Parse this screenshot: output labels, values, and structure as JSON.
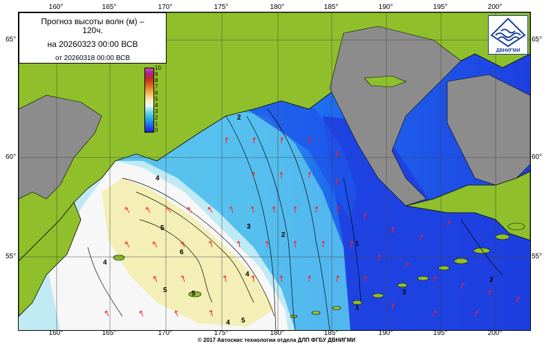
{
  "title": {
    "line1": "Прогноз высоты волн (м) –",
    "line1b": "120ч.",
    "line2": "на 20260323 00:00 ВСВ",
    "line3": "от 20260318 00:00 ВСВ"
  },
  "logo": {
    "text": "ДВНИГМИ",
    "icon": "dvnigmi-logo-icon"
  },
  "axes": {
    "longitude_ticks": [
      "160°",
      "165°",
      "170°",
      "175°",
      "180°",
      "185°",
      "190°",
      "195°",
      "200°"
    ],
    "latitude_ticks": [
      "65°",
      "60°",
      "55°"
    ]
  },
  "legend": {
    "ticks": [
      "10",
      "9",
      "8",
      "7",
      "6",
      "5",
      "4",
      "3",
      "2",
      "1",
      "0"
    ],
    "unit": "м"
  },
  "contour_labels": [
    "4",
    "5",
    "6",
    "5",
    "4",
    "3",
    "2",
    "1",
    "1",
    "2",
    "3",
    "2",
    "4",
    "5",
    "5",
    "4"
  ],
  "credit": "© 2017 Автоскис технологии отдела ДЛП ФГБУ ДВНИГМИ",
  "colors": {
    "land": "#8fbf2a",
    "ice": "#8c8c8c",
    "arrow": "#ff2020",
    "deep_blue": "#1e3fe0",
    "light_blue": "#8bd4ea",
    "sand": "#f3efb6"
  }
}
